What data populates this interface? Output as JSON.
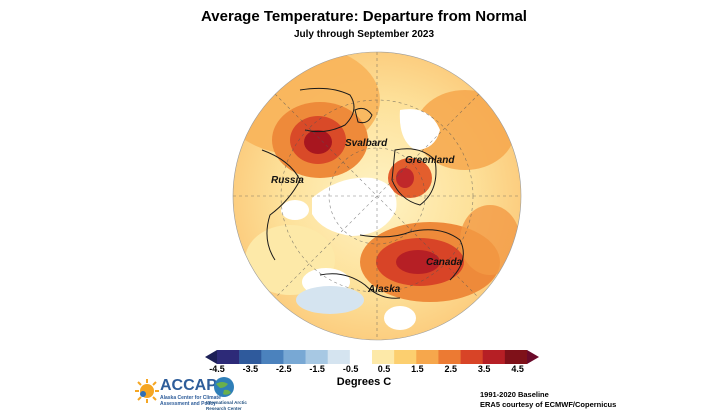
{
  "title": "Average Temperature: Departure from Normal",
  "subtitle": "July through September 2023",
  "regions": [
    {
      "name": "Svalbard"
    },
    {
      "name": "Greenland"
    },
    {
      "name": "Russia"
    },
    {
      "name": "Canada"
    },
    {
      "name": "Alaska"
    }
  ],
  "colorbar": {
    "unit_label": "Degrees C",
    "tick_labels": [
      "-4.5",
      "-3.5",
      "-2.5",
      "-1.5",
      "-0.5",
      "0.5",
      "1.5",
      "2.5",
      "3.5",
      "4.5"
    ],
    "colors": [
      "#2d2a78",
      "#2f5a9c",
      "#4b82bd",
      "#78a8d4",
      "#a7c8e3",
      "#d5e4f0",
      "#ffffff",
      "#fde9a8",
      "#fccf6f",
      "#f6a74c",
      "#ec7a33",
      "#d84427",
      "#b61f25",
      "#7f1119"
    ]
  },
  "baseline": "1991-2020 Baseline",
  "source": "ERA5 courtesy of ECMWF/Copernicus",
  "logos": {
    "accap_name": "ACCAP",
    "accap_line1": "Alaska Center for Climate",
    "accap_line2": "Assessment and Policy",
    "iarc_line1": "International Arctic",
    "iarc_line2": "Research Center"
  }
}
